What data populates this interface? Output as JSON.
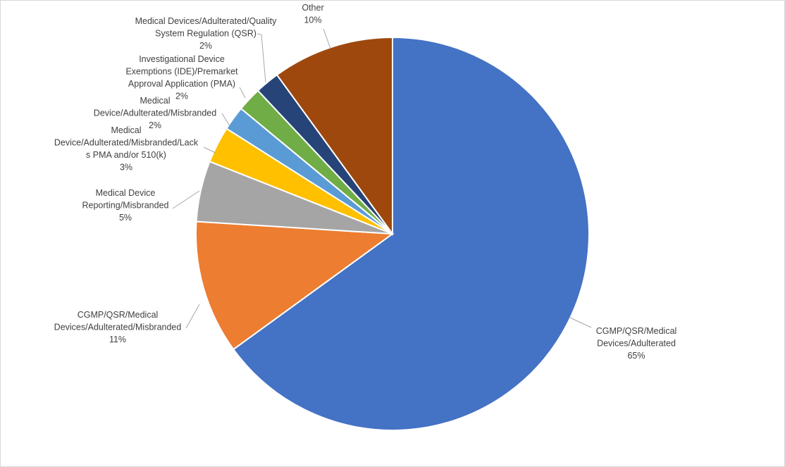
{
  "chart_data": {
    "type": "pie",
    "title": "",
    "legend": "none",
    "start_angle_deg": 0,
    "direction": "clockwise",
    "slices": [
      {
        "name": "CGMP/QSR/Medical Devices/Adulterated",
        "value": 65,
        "percent_label": "65%",
        "color": "#4472c4"
      },
      {
        "name": "CGMP/QSR/Medical Devices/Adulterated/Misbranded",
        "value": 11,
        "percent_label": "11%",
        "color": "#ed7d31"
      },
      {
        "name": "Medical Device Reporting/Misbranded",
        "value": 5,
        "percent_label": "5%",
        "color": "#a5a5a5"
      },
      {
        "name": "Medical Device/Adulterated/Misbranded/Lacks PMA and/or 510(k)",
        "value": 3,
        "percent_label": "3%",
        "color": "#ffc000"
      },
      {
        "name": "Medical Device/Adulterated/Misbranded",
        "value": 2,
        "percent_label": "2%",
        "color": "#5b9bd5"
      },
      {
        "name": "Investigational Device Exemptions (IDE)/Premarket Approval Application (PMA)",
        "value": 2,
        "percent_label": "2%",
        "color": "#70ad47"
      },
      {
        "name": "Medical Devices/Adulterated/Quality System Regulation (QSR)",
        "value": 2,
        "percent_label": "2%",
        "color": "#264478"
      },
      {
        "name": "Other",
        "value": 10,
        "percent_label": "10%",
        "color": "#9e480e"
      }
    ]
  }
}
